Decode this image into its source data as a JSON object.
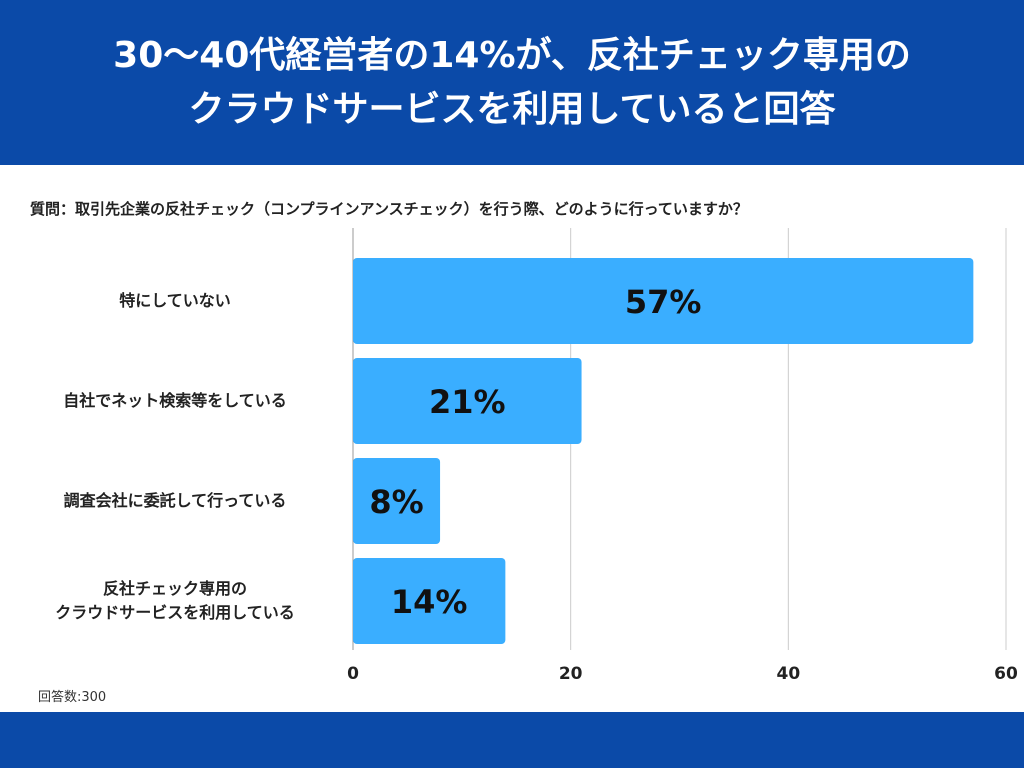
{
  "header": {
    "title_line1": "30〜40代経営者の14%が、反社チェック専用の",
    "title_line2": "クラウドサービスを利用していると回答"
  },
  "question": "質問：取引先企業の反社チェック（コンプラインアンスチェック）を行う際、どのように行っていますか？",
  "footnote": "回答数:300",
  "colors": {
    "header": "#0b4aa8",
    "bar": "#3aaeff",
    "grid": "#cccccc"
  },
  "chart_data": {
    "type": "bar",
    "orientation": "horizontal",
    "categories": [
      [
        "特にしていない"
      ],
      [
        "自社でネット検索等をしている"
      ],
      [
        "調査会社に委託して行っている"
      ],
      [
        "反社チェック専用の",
        "クラウドサービスを利用している"
      ]
    ],
    "values": [
      57,
      21,
      8,
      14
    ],
    "data_labels": [
      "57%",
      "21%",
      "8%",
      "14%"
    ],
    "xlim": [
      0,
      60
    ],
    "xticks": [
      0,
      20,
      40,
      60
    ],
    "grid": true
  }
}
